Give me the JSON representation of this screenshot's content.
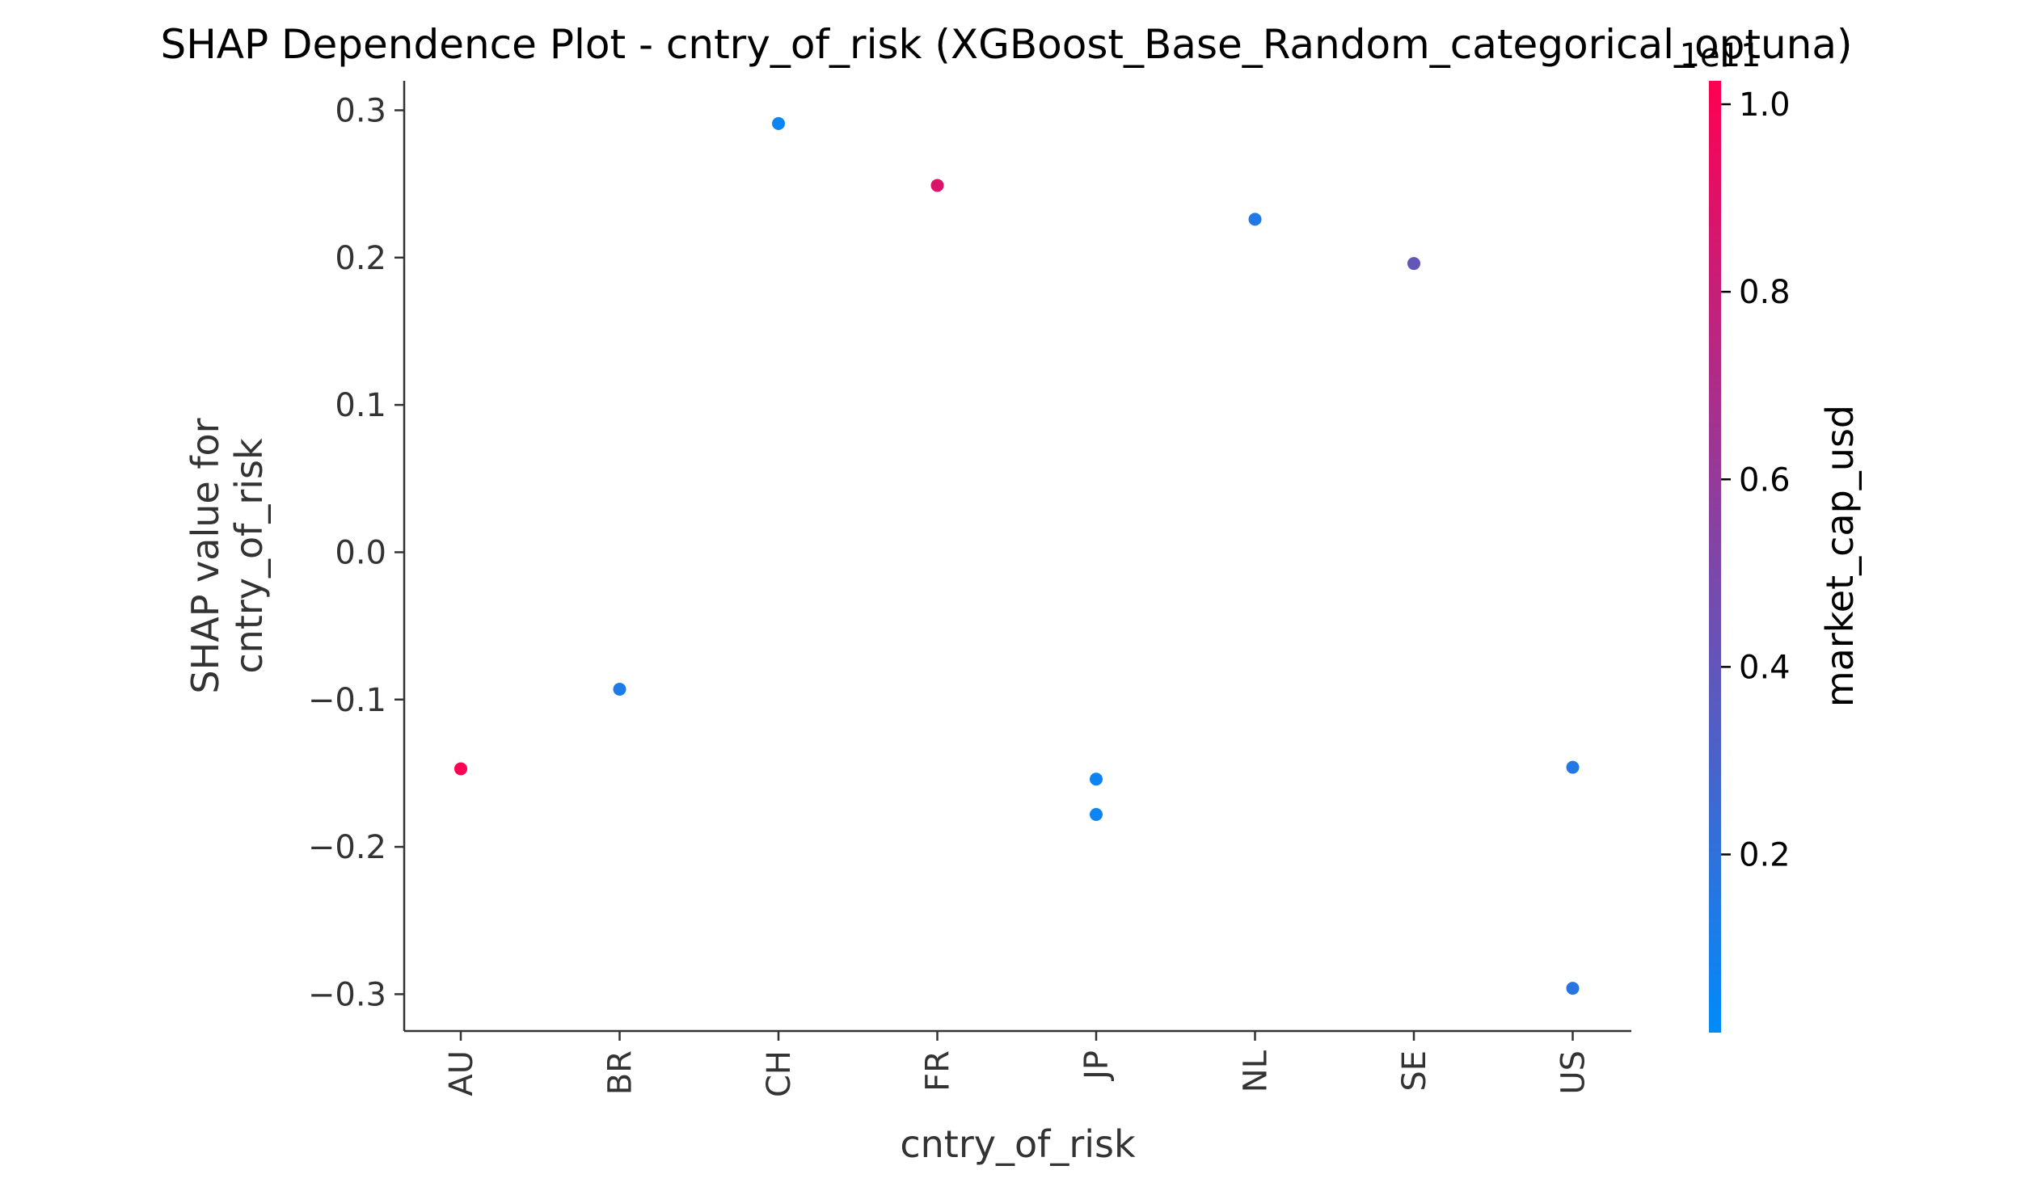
{
  "chart_data": {
    "type": "scatter",
    "title": "SHAP Dependence Plot - cntry_of_risk (XGBoost_Base_Random_categorical_optuna)",
    "xlabel": "cntry_of_risk",
    "ylabel": [
      "SHAP value for",
      "cntry_of_risk"
    ],
    "categories": [
      "AU",
      "BR",
      "CH",
      "FR",
      "JP",
      "NL",
      "SE",
      "US"
    ],
    "ylim": [
      -0.325,
      0.32
    ],
    "yticks": [
      -0.3,
      -0.2,
      -0.1,
      0.0,
      0.1,
      0.2,
      0.3
    ],
    "ytick_labels": [
      "−0.3",
      "−0.2",
      "−0.1",
      "0.0",
      "0.1",
      "0.2",
      "0.3"
    ],
    "grid": false,
    "points": [
      {
        "x": "AU",
        "y": -0.147,
        "color_value": 1.01
      },
      {
        "x": "BR",
        "y": -0.093,
        "color_value": 0.12
      },
      {
        "x": "CH",
        "y": 0.291,
        "color_value": 0.05
      },
      {
        "x": "FR",
        "y": 0.249,
        "color_value": 0.88
      },
      {
        "x": "JP",
        "y": -0.154,
        "color_value": 0.06
      },
      {
        "x": "JP",
        "y": -0.178,
        "color_value": 0.06
      },
      {
        "x": "NL",
        "y": 0.226,
        "color_value": 0.14
      },
      {
        "x": "SE",
        "y": 0.196,
        "color_value": 0.4
      },
      {
        "x": "US",
        "y": -0.146,
        "color_value": 0.15
      },
      {
        "x": "US",
        "y": -0.296,
        "color_value": 0.17
      }
    ],
    "colorbar": {
      "label": "market_cap_usd",
      "offset_label": "1e11",
      "range": [
        0.01,
        1.025
      ],
      "ticks": [
        0.2,
        0.4,
        0.6,
        0.8,
        1.0
      ],
      "tick_labels": [
        "0.2",
        "0.4",
        "0.6",
        "0.8",
        "1.0"
      ],
      "color_low": "#008bfb",
      "color_high": "#ff0052"
    }
  }
}
